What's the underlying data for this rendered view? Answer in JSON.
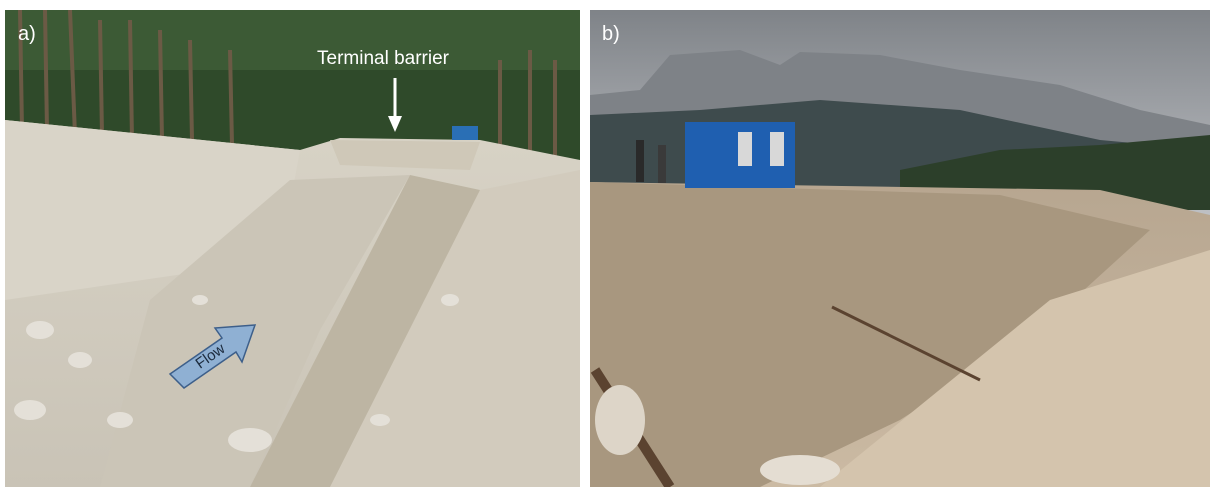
{
  "panel_a": {
    "label": "a)",
    "callout": "Terminal barrier",
    "arrow_label": "Flow"
  },
  "panel_b": {
    "label": "b)"
  }
}
